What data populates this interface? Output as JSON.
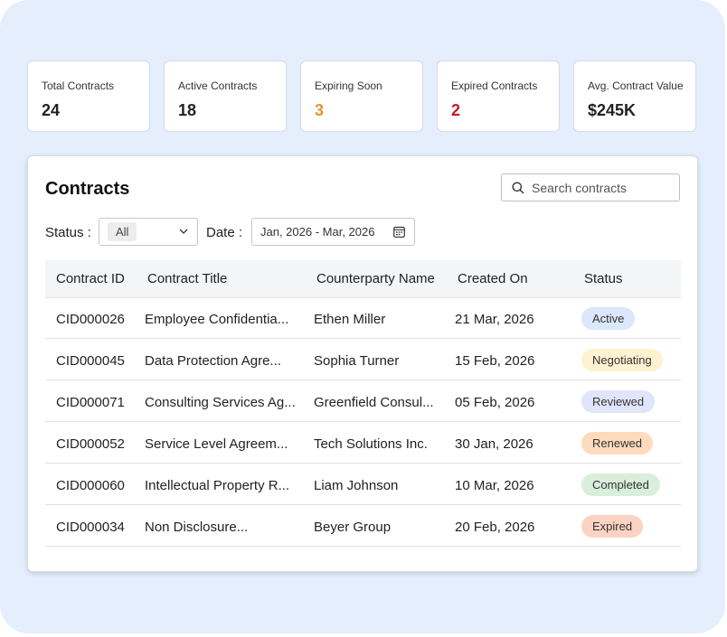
{
  "stats": [
    {
      "label": "Total Contracts",
      "value": "24"
    },
    {
      "label": "Active Contracts",
      "value": "18"
    },
    {
      "label": "Expiring Soon",
      "value": "3"
    },
    {
      "label": "Expired Contracts",
      "value": "2"
    },
    {
      "label": "Avg. Contract Value",
      "value": "$245K"
    }
  ],
  "contracts": {
    "title": "Contracts",
    "search_placeholder": "Search contracts",
    "filters": {
      "status_label": "Status :",
      "status_value": "All",
      "date_label": "Date :",
      "date_value": "Jan, 2026 - Mar, 2026"
    },
    "table": {
      "columns": [
        "Contract ID",
        "Contract Title",
        "Counterparty Name",
        "Created On",
        "Status"
      ],
      "rows": [
        [
          "CID000026",
          "Employee Confidentia...",
          "Ethen Miller",
          "21 Mar, 2026",
          "Active"
        ],
        [
          "CID000045",
          "Data Protection Agre...",
          "Sophia Turner",
          "15 Feb, 2026",
          "Negotiating"
        ],
        [
          "CID000071",
          "Consulting Services Ag...",
          "Greenfield Consul...",
          "05 Feb, 2026",
          "Reviewed"
        ],
        [
          "CID000052",
          "Service Level Agreem...",
          "Tech Solutions Inc.",
          "30 Jan, 2026",
          "Renewed"
        ],
        [
          "CID000060",
          "Intellectual Property R...",
          "Liam Johnson",
          "10 Mar, 2026",
          "Completed"
        ],
        [
          "CID000034",
          "Non Disclosure...",
          "Beyer Group",
          "20 Feb, 2026",
          "Expired"
        ]
      ]
    }
  }
}
